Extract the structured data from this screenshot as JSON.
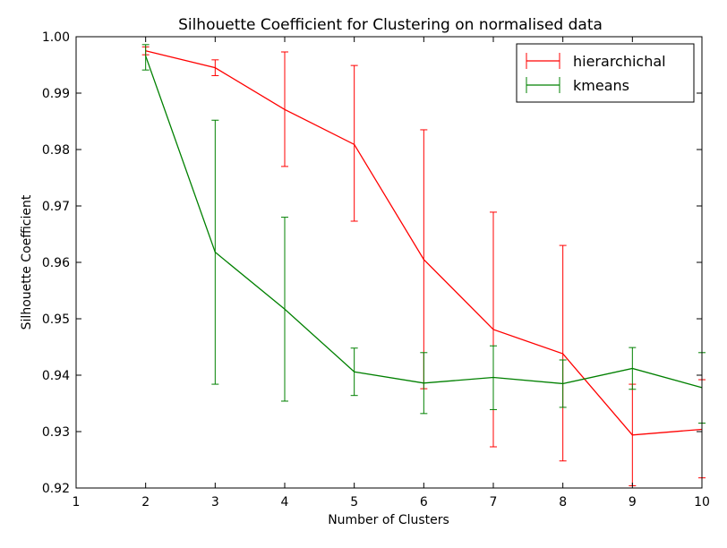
{
  "chart_data": {
    "type": "line",
    "title": "Silhouette Coefficient for Clustering on normalised data",
    "xlabel": "Number of Clusters",
    "ylabel": "Silhouette Coefficient",
    "xlim": [
      1,
      10
    ],
    "ylim": [
      0.92,
      1.0
    ],
    "x_ticks": [
      "1",
      "2",
      "3",
      "4",
      "5",
      "6",
      "7",
      "8",
      "9",
      "10"
    ],
    "y_ticks": [
      "0.92",
      "0.93",
      "0.94",
      "0.95",
      "0.96",
      "0.97",
      "0.98",
      "0.99",
      "1.00"
    ],
    "grid": false,
    "legend_position": "top-right",
    "series": [
      {
        "name": "hierarchichal",
        "color": "#ff0000",
        "x": [
          2,
          3,
          4,
          5,
          6,
          7,
          8,
          9,
          10
        ],
        "y": [
          0.9975,
          0.9945,
          0.9871,
          0.9809,
          0.9605,
          0.9481,
          0.9438,
          0.9294,
          0.9304
        ],
        "err_low": [
          0.9968,
          0.9931,
          0.977,
          0.9673,
          0.9376,
          0.9273,
          0.9248,
          0.9204,
          0.9218
        ],
        "err_high": [
          0.9982,
          0.9959,
          0.9973,
          0.9949,
          0.9835,
          0.9689,
          0.963,
          0.9384,
          0.9392
        ]
      },
      {
        "name": "kmeans",
        "color": "#008000",
        "x": [
          2,
          3,
          4,
          5,
          6,
          7,
          8,
          9,
          10
        ],
        "y": [
          0.9966,
          0.9618,
          0.9517,
          0.9406,
          0.9386,
          0.9396,
          0.9385,
          0.9412,
          0.9378
        ],
        "err_low": [
          0.9941,
          0.9384,
          0.9354,
          0.9364,
          0.9332,
          0.9339,
          0.9343,
          0.9375,
          0.9315
        ],
        "err_high": [
          0.9986,
          0.9852,
          0.968,
          0.9448,
          0.944,
          0.9452,
          0.9427,
          0.9449,
          0.944
        ]
      }
    ]
  }
}
